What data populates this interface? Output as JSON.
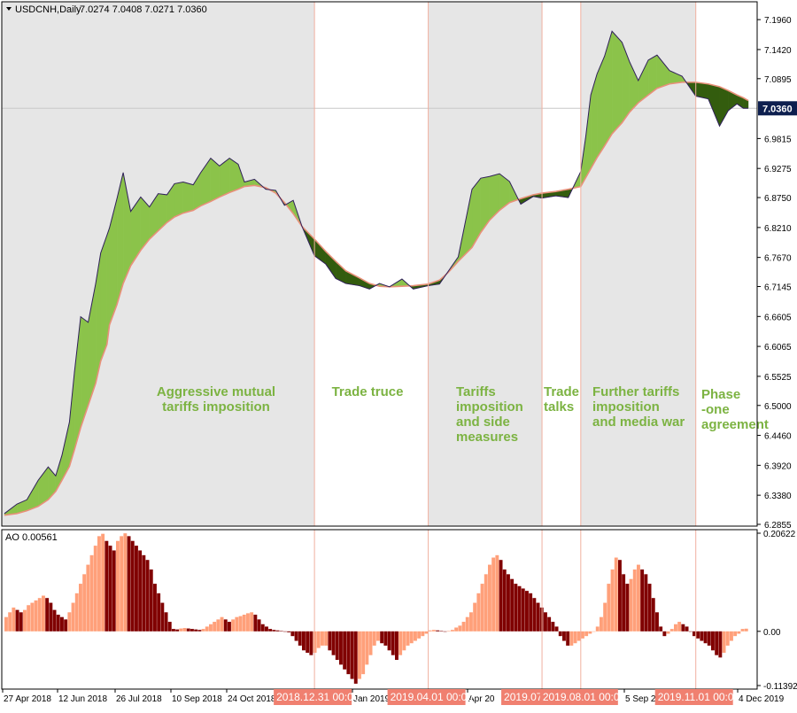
{
  "header": {
    "symbol": "USDCNH,Daily",
    "ohlc": "7.0274 7.0408 7.0271 7.0360"
  },
  "current_price_label": "7.0360",
  "ao_header": "AO 0.00561",
  "colors": {
    "bull_fill": "#8bc34a",
    "bear_fill": "#335c0e",
    "ma_line": "#e8907a",
    "price_line": "#2f1f5a",
    "ao_up": "#ffa07a",
    "ao_down": "#800000",
    "period_shade": "#e6e6e6",
    "period_label": "#7cb342",
    "marker_bg": "#f08070",
    "divider": "#f0b0a0",
    "price_tag_bg": "#0d1f4f"
  },
  "periods": [
    {
      "label_lines": [
        "Aggressive mutual",
        "tariffs imposition"
      ],
      "shaded": true
    },
    {
      "label_lines": [
        "Trade truce"
      ],
      "shaded": false
    },
    {
      "label_lines": [
        "Tariffs",
        "imposition",
        "and side",
        "measures"
      ],
      "shaded": true
    },
    {
      "label_lines": [
        "Trade",
        "talks"
      ],
      "shaded": false
    },
    {
      "label_lines": [
        "Further tariffs",
        "imposition",
        "and media war"
      ],
      "shaded": true
    },
    {
      "label_lines": [
        "Phase",
        "-one",
        "agreement"
      ],
      "shaded": false
    }
  ],
  "date_markers": [
    "2018.12.31 00:00",
    "2019.04.01 00:00",
    "2019.07.0",
    "2019.08.01 00:00",
    "2019.11.01 00:00"
  ],
  "x_tick_labels": [
    "27 Apr 2018",
    "12 Jun 2018",
    "26 Jul 2018",
    "10 Sep 2018",
    "24 Oct 2018",
    "Jan 2019",
    "Apr 20",
    "5 Sep 20",
    "4 Dec 2019"
  ],
  "chart_data": [
    {
      "type": "area",
      "title": "USDCNH,Daily",
      "ylim": [
        6.2855,
        7.225
      ],
      "yticks": [
        "7.1960",
        "7.1420",
        "7.0895",
        "7.0360",
        "6.9815",
        "6.9275",
        "6.8750",
        "6.8210",
        "6.7670",
        "6.7145",
        "6.6605",
        "6.6065",
        "6.5525",
        "6.5000",
        "6.4460",
        "6.3920",
        "6.3380",
        "6.2855"
      ],
      "x": [
        "2018-04-27",
        "2018-05-07",
        "2018-05-15",
        "2018-05-24",
        "2018-06-01",
        "2018-06-07",
        "2018-06-12",
        "2018-06-18",
        "2018-06-22",
        "2018-06-27",
        "2018-07-03",
        "2018-07-09",
        "2018-07-13",
        "2018-07-18",
        "2018-07-20",
        "2018-07-26",
        "2018-07-31",
        "2018-08-06",
        "2018-08-14",
        "2018-08-21",
        "2018-08-28",
        "2018-09-04",
        "2018-09-10",
        "2018-09-17",
        "2018-09-25",
        "2018-10-01",
        "2018-10-09",
        "2018-10-16",
        "2018-10-24",
        "2018-10-31",
        "2018-11-05",
        "2018-11-13",
        "2018-11-22",
        "2018-11-30",
        "2018-12-07",
        "2018-12-14",
        "2018-12-21",
        "2018-12-31",
        "2019-01-09",
        "2019-01-17",
        "2019-01-25",
        "2019-02-05",
        "2019-02-13",
        "2019-02-21",
        "2019-03-01",
        "2019-03-11",
        "2019-03-20",
        "2019-04-01",
        "2019-04-10",
        "2019-04-17",
        "2019-04-25",
        "2019-05-06",
        "2019-05-13",
        "2019-05-20",
        "2019-05-28",
        "2019-06-05",
        "2019-06-14",
        "2019-06-24",
        "2019-07-01",
        "2019-07-12",
        "2019-07-22",
        "2019-08-01",
        "2019-08-05",
        "2019-08-09",
        "2019-08-14",
        "2019-08-20",
        "2019-08-26",
        "2019-09-03",
        "2019-09-09",
        "2019-09-16",
        "2019-09-24",
        "2019-10-01",
        "2019-10-11",
        "2019-10-21",
        "2019-11-01",
        "2019-11-11",
        "2019-11-20",
        "2019-11-27",
        "2019-12-04",
        "2019-12-09",
        "2019-12-13"
      ],
      "series": [
        {
          "values": [
            6.305,
            6.322,
            6.33,
            6.365,
            6.389,
            6.373,
            6.41,
            6.47,
            6.56,
            6.66,
            6.65,
            6.72,
            6.775,
            6.807,
            6.82,
            6.873,
            6.92,
            6.85,
            6.876,
            6.858,
            6.882,
            6.88,
            6.9,
            6.903,
            6.898,
            6.92,
            6.946,
            6.932,
            6.946,
            6.935,
            6.903,
            6.908,
            6.89,
            6.888,
            6.861,
            6.87,
            6.823,
            6.77,
            6.755,
            6.729,
            6.72,
            6.716,
            6.71,
            6.72,
            6.714,
            6.728,
            6.71,
            6.716,
            6.719,
            6.742,
            6.768,
            6.89,
            6.91,
            6.913,
            6.918,
            6.904,
            6.863,
            6.877,
            6.874,
            6.878,
            6.875,
            6.922,
            6.985,
            7.06,
            7.098,
            7.13,
            7.175,
            7.155,
            7.12,
            7.086,
            7.123,
            7.132,
            7.104,
            7.094,
            7.058,
            7.053,
            7.004,
            7.032,
            7.044,
            7.036,
            7.036
          ]
        },
        {
          "values": [
            6.302,
            6.305,
            6.31,
            6.318,
            6.33,
            6.345,
            6.365,
            6.39,
            6.42,
            6.46,
            6.5,
            6.54,
            6.58,
            6.61,
            6.645,
            6.682,
            6.72,
            6.752,
            6.78,
            6.8,
            6.815,
            6.83,
            6.84,
            6.847,
            6.852,
            6.86,
            6.868,
            6.876,
            6.884,
            6.89,
            6.895,
            6.897,
            6.893,
            6.883,
            6.866,
            6.846,
            6.823,
            6.8,
            6.778,
            6.76,
            6.743,
            6.73,
            6.72,
            6.715,
            6.714,
            6.715,
            6.716,
            6.719,
            6.726,
            6.74,
            6.76,
            6.785,
            6.812,
            6.834,
            6.852,
            6.866,
            6.873,
            6.88,
            6.883,
            6.886,
            6.89,
            6.895,
            6.911,
            6.927,
            6.947,
            6.968,
            6.99,
            7.01,
            7.029,
            7.046,
            7.06,
            7.072,
            7.08,
            7.083,
            7.083,
            7.08,
            7.075,
            7.068,
            7.06,
            7.055,
            7.05
          ]
        }
      ]
    },
    {
      "type": "bar",
      "title": "AO 0.00561",
      "ylim": [
        -0.11392,
        0.20622
      ],
      "yticks": [
        "0.20622",
        "0.00",
        "-0.11392"
      ],
      "series": [
        {
          "values": [
            0.03,
            0.04,
            0.05,
            0.045,
            0.04,
            0.045,
            0.055,
            0.06,
            0.065,
            0.07,
            0.075,
            0.07,
            0.06,
            0.045,
            0.035,
            0.03,
            0.025,
            0.04,
            0.06,
            0.08,
            0.1,
            0.12,
            0.14,
            0.16,
            0.18,
            0.2,
            0.205,
            0.19,
            0.18,
            0.17,
            0.19,
            0.2,
            0.206,
            0.2,
            0.19,
            0.18,
            0.17,
            0.16,
            0.15,
            0.13,
            0.1,
            0.08,
            0.06,
            0.04,
            0.02,
            0.005,
            0.004,
            0.006,
            0.007,
            0.006,
            0.005,
            0.004,
            0.003,
            0.005,
            0.01,
            0.015,
            0.02,
            0.025,
            0.03,
            0.025,
            0.02,
            0.025,
            0.03,
            0.032,
            0.035,
            0.038,
            0.04,
            0.035,
            0.025,
            0.015,
            0.01,
            0.005,
            0.003,
            0.002,
            0.001,
            0.0,
            -0.002,
            -0.01,
            -0.02,
            -0.03,
            -0.04,
            -0.045,
            -0.05,
            -0.045,
            -0.035,
            -0.03,
            -0.03,
            -0.04,
            -0.05,
            -0.06,
            -0.07,
            -0.08,
            -0.09,
            -0.1,
            -0.11,
            -0.1,
            -0.09,
            -0.07,
            -0.05,
            -0.03,
            -0.02,
            -0.025,
            -0.03,
            -0.04,
            -0.05,
            -0.06,
            -0.05,
            -0.04,
            -0.03,
            -0.025,
            -0.02,
            -0.015,
            -0.01,
            -0.005,
            0.002,
            0.003,
            0.002,
            0.001,
            0.0,
            0.001,
            0.003,
            0.008,
            0.012,
            0.02,
            0.03,
            0.04,
            0.06,
            0.08,
            0.1,
            0.12,
            0.14,
            0.155,
            0.16,
            0.15,
            0.13,
            0.12,
            0.11,
            0.1,
            0.095,
            0.09,
            0.085,
            0.08,
            0.07,
            0.06,
            0.05,
            0.04,
            0.03,
            0.02,
            0.01,
            -0.01,
            -0.02,
            -0.03,
            -0.03,
            -0.025,
            -0.02,
            -0.015,
            -0.01,
            -0.005,
            0.0,
            0.01,
            0.03,
            0.06,
            0.1,
            0.13,
            0.155,
            0.15,
            0.12,
            0.1,
            0.11,
            0.13,
            0.14,
            0.13,
            0.12,
            0.1,
            0.07,
            0.04,
            0.01,
            -0.01,
            -0.005,
            0.005,
            0.015,
            0.02,
            0.015,
            0.01,
            0.0,
            -0.01,
            -0.015,
            -0.02,
            -0.025,
            -0.03,
            -0.04,
            -0.05,
            -0.055,
            -0.045,
            -0.03,
            -0.02,
            -0.01,
            -0.005,
            0.005,
            0.0056
          ]
        }
      ]
    }
  ]
}
